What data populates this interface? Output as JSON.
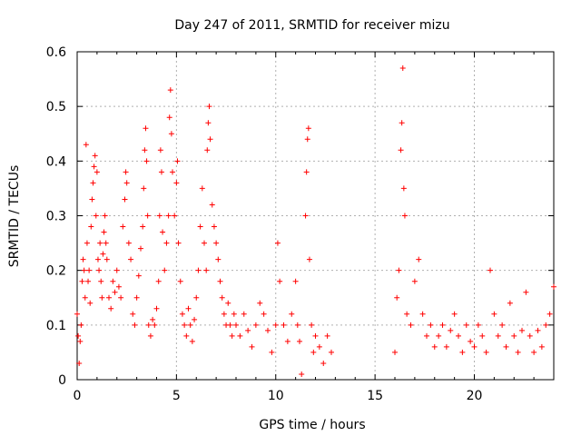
{
  "chart_data": {
    "type": "scatter",
    "title": "Day 247 of 2011, SRMTID for receiver mizu",
    "xlabel": "GPS time / hours",
    "ylabel": "SRMTID / TECUs",
    "xlim": [
      0,
      24
    ],
    "ylim": [
      0,
      0.6
    ],
    "xticks": [
      0,
      5,
      10,
      15,
      20
    ],
    "xtick_labels": [
      "0",
      "5",
      "10",
      "15",
      "20"
    ],
    "yticks": [
      0,
      0.1,
      0.2,
      0.3,
      0.4,
      0.5,
      0.6
    ],
    "ytick_labels": [
      "0",
      "0.1",
      "0.2",
      "0.3",
      "0.4",
      "0.5",
      "0.6"
    ],
    "grid": true,
    "marker": "+",
    "color": "#ff0000",
    "series": [
      {
        "name": "SRMTID",
        "points": [
          [
            0.0,
            0.12
          ],
          [
            0.05,
            0.08
          ],
          [
            0.1,
            0.03
          ],
          [
            0.15,
            0.07
          ],
          [
            0.2,
            0.1
          ],
          [
            0.25,
            0.18
          ],
          [
            0.3,
            0.22
          ],
          [
            0.35,
            0.2
          ],
          [
            0.4,
            0.15
          ],
          [
            0.45,
            0.43
          ],
          [
            0.5,
            0.25
          ],
          [
            0.55,
            0.18
          ],
          [
            0.6,
            0.2
          ],
          [
            0.65,
            0.14
          ],
          [
            0.7,
            0.28
          ],
          [
            0.75,
            0.33
          ],
          [
            0.8,
            0.36
          ],
          [
            0.85,
            0.39
          ],
          [
            0.9,
            0.41
          ],
          [
            0.95,
            0.3
          ],
          [
            1.0,
            0.38
          ],
          [
            1.05,
            0.22
          ],
          [
            1.1,
            0.2
          ],
          [
            1.15,
            0.25
          ],
          [
            1.2,
            0.18
          ],
          [
            1.25,
            0.15
          ],
          [
            1.3,
            0.23
          ],
          [
            1.35,
            0.27
          ],
          [
            1.4,
            0.3
          ],
          [
            1.45,
            0.25
          ],
          [
            1.5,
            0.22
          ],
          [
            1.6,
            0.15
          ],
          [
            1.7,
            0.13
          ],
          [
            1.8,
            0.18
          ],
          [
            1.9,
            0.16
          ],
          [
            2.0,
            0.2
          ],
          [
            2.1,
            0.17
          ],
          [
            2.2,
            0.15
          ],
          [
            2.3,
            0.28
          ],
          [
            2.4,
            0.33
          ],
          [
            2.45,
            0.38
          ],
          [
            2.5,
            0.36
          ],
          [
            2.6,
            0.25
          ],
          [
            2.7,
            0.22
          ],
          [
            2.8,
            0.12
          ],
          [
            2.9,
            0.1
          ],
          [
            3.0,
            0.15
          ],
          [
            3.1,
            0.19
          ],
          [
            3.2,
            0.24
          ],
          [
            3.3,
            0.28
          ],
          [
            3.35,
            0.35
          ],
          [
            3.4,
            0.42
          ],
          [
            3.45,
            0.46
          ],
          [
            3.5,
            0.4
          ],
          [
            3.55,
            0.3
          ],
          [
            3.6,
            0.1
          ],
          [
            3.7,
            0.08
          ],
          [
            3.8,
            0.11
          ],
          [
            3.9,
            0.1
          ],
          [
            4.0,
            0.13
          ],
          [
            4.1,
            0.18
          ],
          [
            4.15,
            0.3
          ],
          [
            4.2,
            0.42
          ],
          [
            4.25,
            0.38
          ],
          [
            4.3,
            0.27
          ],
          [
            4.4,
            0.2
          ],
          [
            4.5,
            0.25
          ],
          [
            4.6,
            0.3
          ],
          [
            4.65,
            0.48
          ],
          [
            4.7,
            0.53
          ],
          [
            4.75,
            0.45
          ],
          [
            4.8,
            0.38
          ],
          [
            4.9,
            0.3
          ],
          [
            5.0,
            0.36
          ],
          [
            5.05,
            0.4
          ],
          [
            5.1,
            0.25
          ],
          [
            5.2,
            0.18
          ],
          [
            5.3,
            0.12
          ],
          [
            5.4,
            0.1
          ],
          [
            5.5,
            0.08
          ],
          [
            5.6,
            0.13
          ],
          [
            5.7,
            0.1
          ],
          [
            5.8,
            0.07
          ],
          [
            5.9,
            0.11
          ],
          [
            6.0,
            0.15
          ],
          [
            6.1,
            0.2
          ],
          [
            6.2,
            0.28
          ],
          [
            6.3,
            0.35
          ],
          [
            6.4,
            0.25
          ],
          [
            6.5,
            0.2
          ],
          [
            6.55,
            0.42
          ],
          [
            6.6,
            0.47
          ],
          [
            6.65,
            0.5
          ],
          [
            6.7,
            0.44
          ],
          [
            6.8,
            0.32
          ],
          [
            6.9,
            0.28
          ],
          [
            7.0,
            0.25
          ],
          [
            7.1,
            0.22
          ],
          [
            7.2,
            0.18
          ],
          [
            7.3,
            0.15
          ],
          [
            7.4,
            0.12
          ],
          [
            7.5,
            0.1
          ],
          [
            7.6,
            0.14
          ],
          [
            7.7,
            0.1
          ],
          [
            7.8,
            0.08
          ],
          [
            7.9,
            0.12
          ],
          [
            8.0,
            0.1
          ],
          [
            8.2,
            0.08
          ],
          [
            8.4,
            0.12
          ],
          [
            8.6,
            0.09
          ],
          [
            8.8,
            0.06
          ],
          [
            9.0,
            0.1
          ],
          [
            9.2,
            0.14
          ],
          [
            9.4,
            0.12
          ],
          [
            9.6,
            0.09
          ],
          [
            9.8,
            0.05
          ],
          [
            10.0,
            0.1
          ],
          [
            10.1,
            0.25
          ],
          [
            10.2,
            0.18
          ],
          [
            10.4,
            0.1
          ],
          [
            10.6,
            0.07
          ],
          [
            10.8,
            0.12
          ],
          [
            11.0,
            0.18
          ],
          [
            11.1,
            0.1
          ],
          [
            11.2,
            0.07
          ],
          [
            11.3,
            0.01
          ],
          [
            11.5,
            0.3
          ],
          [
            11.55,
            0.38
          ],
          [
            11.6,
            0.44
          ],
          [
            11.65,
            0.46
          ],
          [
            11.7,
            0.22
          ],
          [
            11.8,
            0.1
          ],
          [
            11.9,
            0.05
          ],
          [
            12.0,
            0.08
          ],
          [
            12.2,
            0.06
          ],
          [
            12.4,
            0.03
          ],
          [
            12.6,
            0.08
          ],
          [
            12.8,
            0.05
          ],
          [
            16.0,
            0.05
          ],
          [
            16.1,
            0.15
          ],
          [
            16.2,
            0.2
          ],
          [
            16.3,
            0.42
          ],
          [
            16.35,
            0.47
          ],
          [
            16.4,
            0.57
          ],
          [
            16.45,
            0.35
          ],
          [
            16.5,
            0.3
          ],
          [
            16.6,
            0.12
          ],
          [
            16.8,
            0.1
          ],
          [
            17.0,
            0.18
          ],
          [
            17.2,
            0.22
          ],
          [
            17.4,
            0.12
          ],
          [
            17.6,
            0.08
          ],
          [
            17.8,
            0.1
          ],
          [
            18.0,
            0.06
          ],
          [
            18.2,
            0.08
          ],
          [
            18.4,
            0.1
          ],
          [
            18.6,
            0.06
          ],
          [
            18.8,
            0.09
          ],
          [
            19.0,
            0.12
          ],
          [
            19.2,
            0.08
          ],
          [
            19.4,
            0.05
          ],
          [
            19.6,
            0.1
          ],
          [
            19.8,
            0.07
          ],
          [
            20.0,
            0.06
          ],
          [
            20.2,
            0.1
          ],
          [
            20.4,
            0.08
          ],
          [
            20.6,
            0.05
          ],
          [
            20.8,
            0.2
          ],
          [
            21.0,
            0.12
          ],
          [
            21.2,
            0.08
          ],
          [
            21.4,
            0.1
          ],
          [
            21.6,
            0.06
          ],
          [
            21.8,
            0.14
          ],
          [
            22.0,
            0.08
          ],
          [
            22.2,
            0.05
          ],
          [
            22.4,
            0.09
          ],
          [
            22.6,
            0.16
          ],
          [
            22.8,
            0.08
          ],
          [
            23.0,
            0.05
          ],
          [
            23.2,
            0.09
          ],
          [
            23.4,
            0.06
          ],
          [
            23.6,
            0.1
          ],
          [
            23.8,
            0.12
          ],
          [
            24.0,
            0.17
          ]
        ]
      }
    ]
  }
}
